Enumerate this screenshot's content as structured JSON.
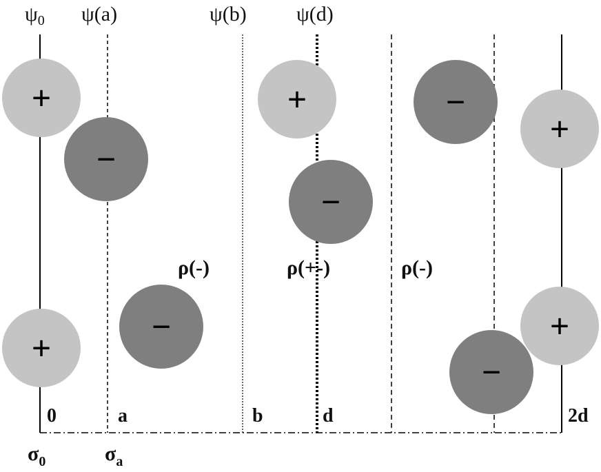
{
  "potentials": {
    "psi0": {
      "symbol": "ψ",
      "sub": "0"
    },
    "psi_a": "ψ(a)",
    "psi_b": "ψ(b)",
    "psi_d": "ψ(d)"
  },
  "densities": {
    "left": "ρ(-)",
    "middle": "ρ(+-)",
    "right": "ρ(-)"
  },
  "positions": {
    "zero": "0",
    "a": "a",
    "b": "b",
    "d": "d",
    "two_d": "2d"
  },
  "surface_charges": {
    "sigma0": {
      "symbol": "σ",
      "sub": "0"
    },
    "sigma_a": {
      "symbol": "σ",
      "sub": "a"
    }
  },
  "ions": {
    "positive_sign": "+",
    "negative_sign": "−",
    "positive_color": "#c4c4c4",
    "negative_color": "#7f7f7f"
  }
}
